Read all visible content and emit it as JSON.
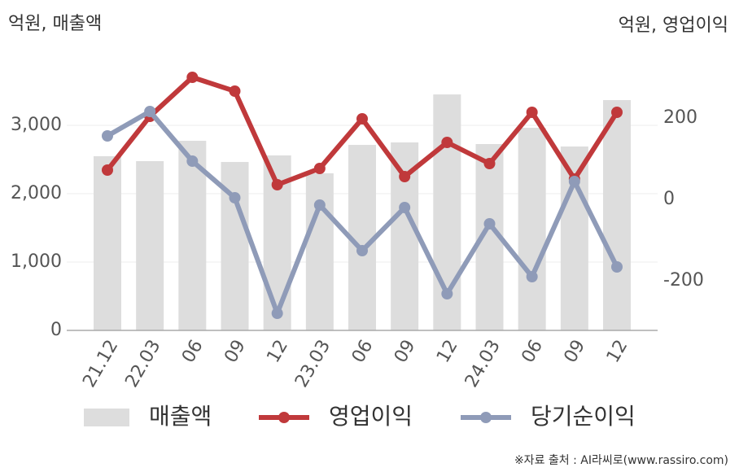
{
  "chart_data": {
    "type": "bar_line",
    "y_label": "억원, 매출액",
    "y2_label": "억원, 영업이익",
    "source": "※자료 출처 : AI라씨로(www.rassiro.com)",
    "categories": [
      "21.12",
      "22.03",
      "06",
      "09",
      "12",
      "23.03",
      "06",
      "09",
      "12",
      "24.03",
      "06",
      "09",
      "12"
    ],
    "series": [
      {
        "name": "매출액",
        "type": "bar",
        "color": "#dddddd",
        "values": [
          2548,
          2476,
          2774,
          2464,
          2560,
          2298,
          2714,
          2750,
          3452,
          2726,
          2964,
          2690,
          3369
        ]
      },
      {
        "name": "영업이익",
        "type": "line",
        "axis": "y2",
        "color": "#c0393b",
        "values": [
          72,
          204,
          300,
          266,
          36,
          76,
          198,
          56,
          140,
          88,
          214,
          50,
          214
        ]
      },
      {
        "name": "당기순이익",
        "type": "line",
        "axis": "y2",
        "color": "#8f9bb8",
        "values": [
          156,
          216,
          94,
          4,
          -280,
          -14,
          -126,
          -20,
          -232,
          -60,
          -190,
          44,
          -166
        ]
      }
    ],
    "ylim": [
      0,
      4000
    ],
    "yticks": [
      0,
      {
        "value": 1000,
        "label": "1,000"
      },
      {
        "value": 2000,
        "label": "2,000"
      },
      {
        "value": 3000,
        "label": "3,000"
      }
    ],
    "y2lim": [
      -322,
      350
    ],
    "y2ticks": [
      -200,
      0,
      200
    ],
    "grid": true,
    "legend": "bottom"
  }
}
